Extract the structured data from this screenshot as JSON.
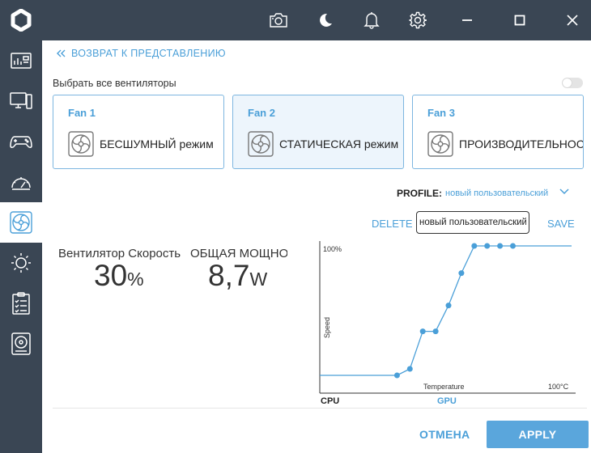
{
  "header": {
    "icons": [
      "camera-icon",
      "moon-icon",
      "bell-icon",
      "gear-icon",
      "minimize-icon",
      "maximize-icon",
      "close-icon"
    ]
  },
  "sidebar": {
    "items": [
      {
        "name": "dashboard",
        "icon": "dashboard-icon",
        "active": false
      },
      {
        "name": "monitor",
        "icon": "monitor-icon",
        "active": false
      },
      {
        "name": "gaming",
        "icon": "gamepad-icon",
        "active": false
      },
      {
        "name": "performance",
        "icon": "gauge-icon",
        "active": false
      },
      {
        "name": "fans",
        "icon": "fan-icon",
        "active": true
      },
      {
        "name": "lighting",
        "icon": "sun-icon",
        "active": false
      },
      {
        "name": "tasks",
        "icon": "clipboard-icon",
        "active": false
      },
      {
        "name": "storage",
        "icon": "disk-icon",
        "active": false
      }
    ]
  },
  "back": {
    "label": "ВОЗВРАТ К ПРЕДСТАВЛЕНИЮ"
  },
  "select_all": {
    "label": "Выбрать все вентиляторы",
    "enabled": false
  },
  "fans": [
    {
      "title": "Fan 1",
      "mode": "БЕСШУМНЫЙ режим",
      "selected": false
    },
    {
      "title": "Fan 2",
      "mode": "СТАТИЧЕСКАЯ режим",
      "selected": true
    },
    {
      "title": "Fan 3",
      "mode": "ПРОИЗВОДИТЕЛЬНОСТЬ",
      "selected": false
    }
  ],
  "profile": {
    "label": "PROFILE:",
    "selected": "новый пользовательский",
    "delete_label": "DELETE",
    "name_value": "новый пользовательский",
    "save_label": "SAVE"
  },
  "metrics": {
    "speed_label": "Вентилятор Скорость",
    "speed_value": "30",
    "speed_unit": "%",
    "power_label": "ОБЩАЯ МОЩНОСТЬ",
    "power_value": "8,7",
    "power_unit": "W"
  },
  "chart_data": {
    "type": "line",
    "ylabel": "Speed",
    "xlabel": "Temperature",
    "y_max_label": "100%",
    "x_max_label": "100°C",
    "xlim": [
      0,
      100
    ],
    "ylim": [
      0,
      100
    ],
    "points": [
      {
        "x": 30,
        "y": 0
      },
      {
        "x": 35,
        "y": 5
      },
      {
        "x": 40,
        "y": 34
      },
      {
        "x": 45,
        "y": 34
      },
      {
        "x": 50,
        "y": 54
      },
      {
        "x": 55,
        "y": 79
      },
      {
        "x": 60,
        "y": 100
      },
      {
        "x": 65,
        "y": 100
      },
      {
        "x": 70,
        "y": 100
      },
      {
        "x": 75,
        "y": 100
      }
    ],
    "color": "#4a9fd8"
  },
  "tabs": [
    {
      "label": "CPU",
      "active": true
    },
    {
      "label": "GPU",
      "active": false
    }
  ],
  "footer": {
    "cancel_label": "ОТМЕНА",
    "apply_label": "APPLY"
  }
}
